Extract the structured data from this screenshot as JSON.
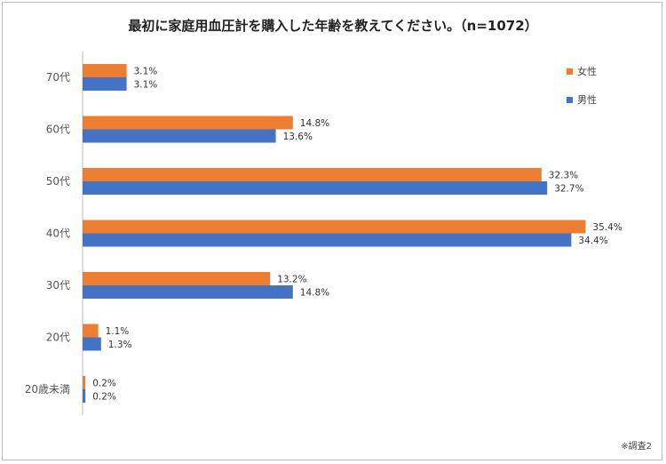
{
  "chart_data": {
    "type": "bar",
    "orientation": "horizontal",
    "title": "最初に家庭用血圧計を購入した年齢を教えてください。（n=1072）",
    "note": "※調査2",
    "categories": [
      "70代",
      "60代",
      "50代",
      "40代",
      "30代",
      "20代",
      "20歳未満"
    ],
    "series": [
      {
        "name": "女性",
        "color": "#ED7D31",
        "values": [
          3.1,
          14.8,
          32.3,
          35.4,
          13.2,
          1.1,
          0.2
        ],
        "labels": [
          "3.1%",
          "14.8%",
          "32.3%",
          "35.4%",
          "13.2%",
          "1.1%",
          "0.2%"
        ]
      },
      {
        "name": "男性",
        "color": "#4472C4",
        "values": [
          3.1,
          13.6,
          32.7,
          34.4,
          14.8,
          1.3,
          0.2
        ],
        "labels": [
          "3.1%",
          "13.6%",
          "32.7%",
          "34.4%",
          "14.8%",
          "1.3%",
          "0.2%"
        ]
      }
    ],
    "xlim": [
      0,
      40
    ],
    "grid": false,
    "legend_position": "top-right"
  }
}
